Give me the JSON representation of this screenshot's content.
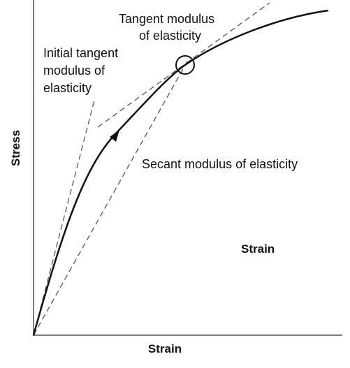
{
  "labels": {
    "tangent": [
      "Tangent modulus",
      "of elasticity"
    ],
    "initial_tangent": [
      "Initial tangent",
      "modulus of",
      "elasticity"
    ],
    "secant": "Secant modulus of elasticity",
    "inner_strain": "Strain",
    "x_axis": "Strain",
    "y_axis": "Stress"
  }
}
